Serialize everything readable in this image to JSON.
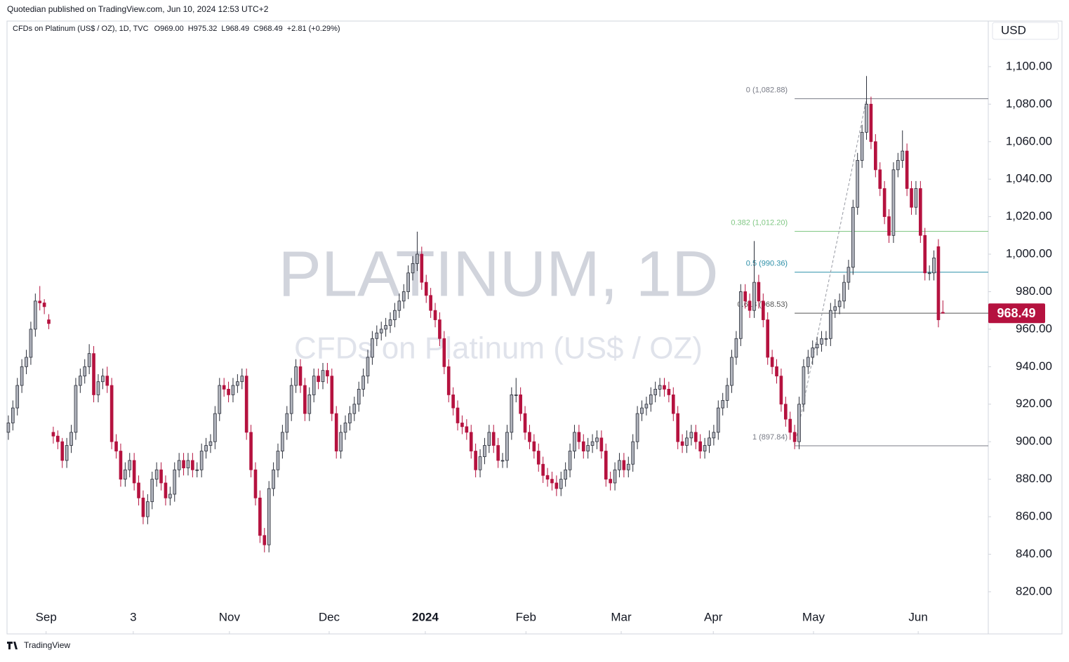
{
  "header": "Quotedian published on TradingView.com, Jun 10, 2024 12:53 UTC+2",
  "footer": "TradingView",
  "chart_data": {
    "type": "candlestick",
    "legend_text": "CFDs on Platinum (US$ / OZ), 1D, TVC",
    "legend_values": [
      "O969.00",
      "H975.32",
      "L968.49",
      "C968.49",
      "+2.81 (+0.29%)"
    ],
    "currency": "USD",
    "watermark": [
      "PLATINUM, 1D",
      "CFDs on Platinum (US$ / OZ)"
    ],
    "up_color": "#b2b5be",
    "down_color": "#b5123f",
    "xlim": [
      -0.3,
      218.1
    ],
    "ylim": [
      797.5,
      1124.3
    ],
    "xticks": [
      {
        "value": 8.4,
        "label": "Sep"
      },
      {
        "value": 27.8,
        "label": "3"
      },
      {
        "value": 49.2,
        "label": "Nov"
      },
      {
        "value": 71.4,
        "label": "Dec"
      },
      {
        "value": 92.8,
        "label": "2024"
      },
      {
        "value": 115.2,
        "label": "Feb"
      },
      {
        "value": 136.4,
        "label": "Mar"
      },
      {
        "value": 156.9,
        "label": "Apr"
      },
      {
        "value": 179.2,
        "label": "May"
      },
      {
        "value": 202.5,
        "label": "Jun"
      }
    ],
    "yticks": [
      {
        "value": 820,
        "label": "820.00"
      },
      {
        "value": 840,
        "label": "840.00"
      },
      {
        "value": 860,
        "label": "860.00"
      },
      {
        "value": 880,
        "label": "880.00"
      },
      {
        "value": 900,
        "label": "900.00"
      },
      {
        "value": 920,
        "label": "920.00"
      },
      {
        "value": 940,
        "label": "940.00"
      },
      {
        "value": 960,
        "label": "960.00"
      },
      {
        "value": 980,
        "label": "980.00"
      },
      {
        "value": 1000,
        "label": "1,000.00"
      },
      {
        "value": 1020,
        "label": "1,020.00"
      },
      {
        "value": 1040,
        "label": "1,040.00"
      },
      {
        "value": 1060,
        "label": "1,060.00"
      },
      {
        "value": 1080,
        "label": "1,080.00"
      },
      {
        "value": 1100,
        "label": "1,100.00"
      }
    ],
    "fib_anchor_x": [
      175,
      191
    ],
    "fib_levels": [
      {
        "value": 1082.88,
        "label": "0 (1,082.88)",
        "color": "#787b86"
      },
      {
        "value": 1012.2,
        "label": "0.382 (1,012.20)",
        "color": "#81c784"
      },
      {
        "value": 990.36,
        "label": "0.5 (990.36)",
        "color": "#2c8fa8"
      },
      {
        "value": 968.53,
        "label": "0.618 (968.53)",
        "color": "#555555"
      },
      {
        "value": 897.84,
        "label": "1 (897.84)",
        "color": "#787b86"
      }
    ],
    "candles": [
      [
        905,
        914,
        901,
        910
      ],
      [
        910,
        922,
        906,
        918
      ],
      [
        918,
        934,
        914,
        930
      ],
      [
        930,
        944,
        926,
        940
      ],
      [
        940,
        949,
        936,
        945
      ],
      [
        945,
        964,
        941,
        960
      ],
      [
        960,
        979,
        956,
        975
      ],
      [
        975,
        983,
        970,
        974
      ],
      [
        974,
        976,
        968,
        972
      ],
      [
        965,
        968,
        960,
        963
      ],
      [
        905,
        908,
        899,
        903
      ],
      [
        903,
        906,
        896,
        900
      ],
      [
        900,
        902,
        886,
        890
      ],
      [
        890,
        902,
        886,
        898
      ],
      [
        898,
        909,
        894,
        905
      ],
      [
        905,
        934,
        901,
        930
      ],
      [
        930,
        939,
        926,
        935
      ],
      [
        935,
        944,
        931,
        940
      ],
      [
        940,
        952,
        936,
        947
      ],
      [
        947,
        951,
        921,
        925
      ],
      [
        925,
        936,
        921,
        932
      ],
      [
        932,
        939,
        928,
        935
      ],
      [
        935,
        940,
        926,
        930
      ],
      [
        930,
        934,
        896,
        900
      ],
      [
        900,
        904,
        891,
        895
      ],
      [
        895,
        899,
        876,
        880
      ],
      [
        880,
        889,
        876,
        885
      ],
      [
        885,
        894,
        881,
        890
      ],
      [
        890,
        894,
        874,
        878
      ],
      [
        878,
        882,
        866,
        870
      ],
      [
        870,
        874,
        856,
        860
      ],
      [
        860,
        872,
        856,
        868
      ],
      [
        868,
        884,
        864,
        880
      ],
      [
        880,
        889,
        876,
        885
      ],
      [
        885,
        889,
        874,
        878
      ],
      [
        878,
        882,
        866,
        870
      ],
      [
        870,
        876,
        866,
        872
      ],
      [
        872,
        889,
        868,
        885
      ],
      [
        885,
        894,
        881,
        890
      ],
      [
        890,
        894,
        882,
        886
      ],
      [
        886,
        894,
        882,
        890
      ],
      [
        890,
        894,
        881,
        885
      ],
      [
        885,
        889,
        881,
        885
      ],
      [
        885,
        899,
        881,
        895
      ],
      [
        895,
        902,
        891,
        898
      ],
      [
        898,
        904,
        894,
        900
      ],
      [
        900,
        919,
        896,
        915
      ],
      [
        915,
        934,
        911,
        930
      ],
      [
        930,
        934,
        924,
        928
      ],
      [
        928,
        932,
        921,
        925
      ],
      [
        925,
        934,
        921,
        930
      ],
      [
        930,
        936,
        926,
        932
      ],
      [
        932,
        939,
        928,
        935
      ],
      [
        935,
        939,
        901,
        905
      ],
      [
        905,
        909,
        881,
        885
      ],
      [
        885,
        889,
        866,
        870
      ],
      [
        870,
        874,
        846,
        850
      ],
      [
        850,
        854,
        841,
        845
      ],
      [
        845,
        879,
        841,
        875
      ],
      [
        875,
        889,
        871,
        885
      ],
      [
        885,
        899,
        881,
        895
      ],
      [
        895,
        909,
        891,
        905
      ],
      [
        905,
        919,
        901,
        915
      ],
      [
        915,
        934,
        911,
        930
      ],
      [
        930,
        944,
        926,
        940
      ],
      [
        940,
        944,
        926,
        930
      ],
      [
        930,
        934,
        911,
        915
      ],
      [
        915,
        929,
        911,
        925
      ],
      [
        925,
        939,
        921,
        935
      ],
      [
        935,
        939,
        928,
        932
      ],
      [
        932,
        942,
        928,
        938
      ],
      [
        938,
        942,
        931,
        935
      ],
      [
        935,
        939,
        911,
        915
      ],
      [
        915,
        919,
        891,
        895
      ],
      [
        895,
        909,
        891,
        905
      ],
      [
        905,
        914,
        901,
        910
      ],
      [
        910,
        919,
        906,
        915
      ],
      [
        915,
        924,
        911,
        920
      ],
      [
        920,
        932,
        916,
        928
      ],
      [
        928,
        939,
        924,
        935
      ],
      [
        935,
        949,
        931,
        945
      ],
      [
        945,
        959,
        941,
        955
      ],
      [
        955,
        962,
        951,
        958
      ],
      [
        958,
        964,
        954,
        960
      ],
      [
        960,
        966,
        956,
        962
      ],
      [
        962,
        969,
        958,
        965
      ],
      [
        965,
        974,
        961,
        970
      ],
      [
        970,
        979,
        966,
        975
      ],
      [
        975,
        984,
        971,
        980
      ],
      [
        980,
        994,
        976,
        990
      ],
      [
        990,
        999,
        986,
        995
      ],
      [
        995,
        1012,
        991,
        1000
      ],
      [
        1000,
        1004,
        981,
        985
      ],
      [
        985,
        989,
        974,
        978
      ],
      [
        978,
        982,
        966,
        970
      ],
      [
        970,
        974,
        961,
        965
      ],
      [
        965,
        969,
        951,
        955
      ],
      [
        955,
        959,
        936,
        940
      ],
      [
        940,
        944,
        921,
        925
      ],
      [
        925,
        929,
        914,
        918
      ],
      [
        918,
        922,
        906,
        910
      ],
      [
        910,
        914,
        904,
        908
      ],
      [
        908,
        912,
        901,
        905
      ],
      [
        905,
        909,
        891,
        895
      ],
      [
        895,
        899,
        881,
        885
      ],
      [
        885,
        896,
        881,
        892
      ],
      [
        892,
        902,
        888,
        898
      ],
      [
        898,
        909,
        894,
        905
      ],
      [
        905,
        909,
        894,
        898
      ],
      [
        898,
        902,
        886,
        890
      ],
      [
        890,
        894,
        886,
        890
      ],
      [
        890,
        909,
        886,
        905
      ],
      [
        905,
        929,
        901,
        925
      ],
      [
        925,
        934,
        921,
        925
      ],
      [
        925,
        929,
        911,
        915
      ],
      [
        915,
        919,
        901,
        905
      ],
      [
        905,
        909,
        896,
        900
      ],
      [
        900,
        904,
        891,
        895
      ],
      [
        895,
        899,
        884,
        888
      ],
      [
        888,
        892,
        878,
        882
      ],
      [
        882,
        886,
        876,
        880
      ],
      [
        880,
        884,
        874,
        878
      ],
      [
        878,
        882,
        871,
        875
      ],
      [
        875,
        884,
        871,
        880
      ],
      [
        880,
        889,
        876,
        885
      ],
      [
        885,
        899,
        881,
        895
      ],
      [
        895,
        909,
        891,
        905
      ],
      [
        905,
        909,
        896,
        900
      ],
      [
        900,
        904,
        891,
        895
      ],
      [
        895,
        902,
        891,
        898
      ],
      [
        898,
        904,
        894,
        900
      ],
      [
        900,
        906,
        896,
        902
      ],
      [
        902,
        906,
        891,
        895
      ],
      [
        895,
        899,
        876,
        880
      ],
      [
        880,
        884,
        874,
        878
      ],
      [
        878,
        889,
        874,
        885
      ],
      [
        885,
        894,
        881,
        890
      ],
      [
        890,
        894,
        881,
        885
      ],
      [
        885,
        892,
        881,
        888
      ],
      [
        888,
        904,
        884,
        900
      ],
      [
        900,
        919,
        896,
        915
      ],
      [
        915,
        922,
        911,
        918
      ],
      [
        918,
        924,
        914,
        920
      ],
      [
        920,
        929,
        916,
        925
      ],
      [
        925,
        932,
        921,
        928
      ],
      [
        928,
        934,
        924,
        930
      ],
      [
        930,
        934,
        924,
        928
      ],
      [
        928,
        932,
        921,
        925
      ],
      [
        925,
        929,
        911,
        915
      ],
      [
        915,
        919,
        896,
        900
      ],
      [
        900,
        904,
        894,
        898
      ],
      [
        898,
        906,
        894,
        902
      ],
      [
        902,
        909,
        898,
        905
      ],
      [
        905,
        909,
        896,
        900
      ],
      [
        900,
        904,
        891,
        895
      ],
      [
        895,
        902,
        891,
        898
      ],
      [
        898,
        906,
        894,
        902
      ],
      [
        902,
        909,
        898,
        905
      ],
      [
        905,
        922,
        901,
        918
      ],
      [
        918,
        926,
        914,
        922
      ],
      [
        922,
        934,
        918,
        930
      ],
      [
        930,
        949,
        926,
        945
      ],
      [
        945,
        959,
        941,
        955
      ],
      [
        955,
        984,
        951,
        980
      ],
      [
        980,
        984,
        971,
        975
      ],
      [
        975,
        979,
        966,
        970
      ],
      [
        970,
        1007,
        966,
        985
      ],
      [
        985,
        989,
        971,
        975
      ],
      [
        975,
        979,
        961,
        965
      ],
      [
        965,
        969,
        941,
        945
      ],
      [
        945,
        949,
        936,
        940
      ],
      [
        940,
        944,
        931,
        935
      ],
      [
        935,
        939,
        916,
        920
      ],
      [
        920,
        924,
        908,
        912
      ],
      [
        912,
        916,
        901,
        905
      ],
      [
        905,
        909,
        896,
        900
      ],
      [
        900,
        924,
        896,
        920
      ],
      [
        920,
        944,
        916,
        940
      ],
      [
        940,
        949,
        936,
        945
      ],
      [
        945,
        954,
        941,
        950
      ],
      [
        950,
        956,
        946,
        952
      ],
      [
        952,
        959,
        948,
        955
      ],
      [
        955,
        959,
        951,
        955
      ],
      [
        955,
        974,
        951,
        970
      ],
      [
        970,
        976,
        966,
        972
      ],
      [
        972,
        979,
        968,
        975
      ],
      [
        975,
        989,
        971,
        985
      ],
      [
        985,
        997,
        981,
        993
      ],
      [
        993,
        1029,
        989,
        1025
      ],
      [
        1025,
        1054,
        1021,
        1050
      ],
      [
        1050,
        1069,
        1046,
        1065
      ],
      [
        1065,
        1095,
        1061,
        1080
      ],
      [
        1080,
        1084,
        1056,
        1060
      ],
      [
        1060,
        1064,
        1041,
        1045
      ],
      [
        1045,
        1049,
        1031,
        1035
      ],
      [
        1035,
        1039,
        1016,
        1020
      ],
      [
        1020,
        1024,
        1006,
        1010
      ],
      [
        1010,
        1049,
        1006,
        1045
      ],
      [
        1045,
        1054,
        1041,
        1050
      ],
      [
        1050,
        1066,
        1046,
        1055
      ],
      [
        1055,
        1059,
        1031,
        1035
      ],
      [
        1035,
        1039,
        1021,
        1025
      ],
      [
        1025,
        1039,
        1021,
        1035
      ],
      [
        1035,
        1039,
        1006,
        1010
      ],
      [
        1010,
        1014,
        986,
        990
      ],
      [
        990,
        994,
        986,
        990
      ],
      [
        990,
        1002,
        986,
        998
      ],
      [
        1004,
        1008,
        961,
        965
      ],
      [
        969.0,
        975.32,
        968.49,
        968.49
      ]
    ]
  }
}
